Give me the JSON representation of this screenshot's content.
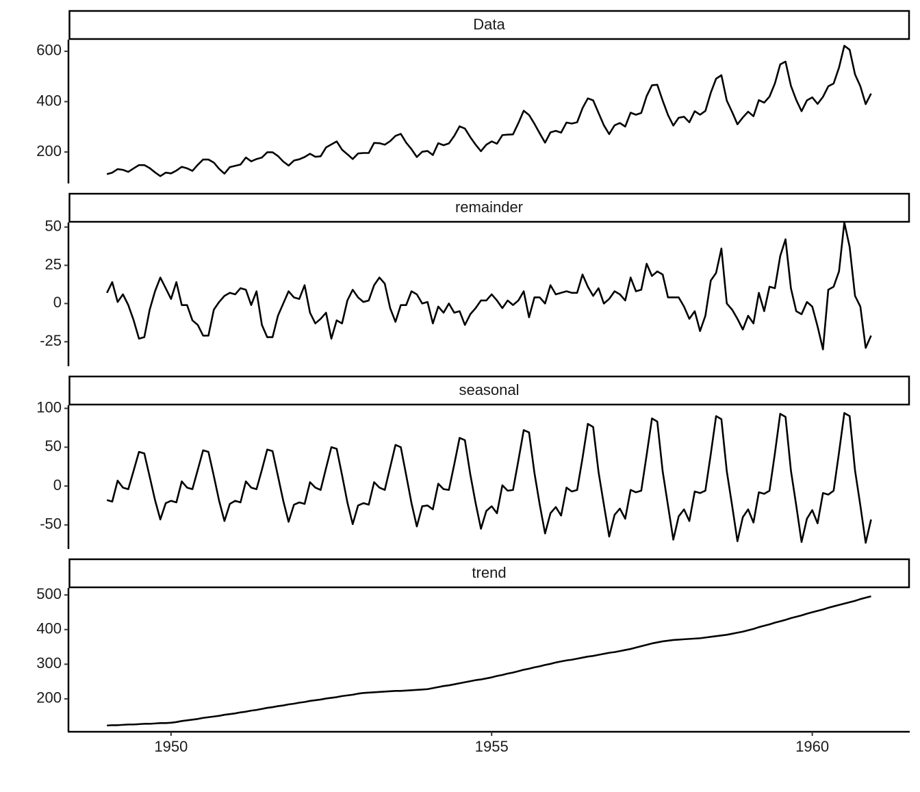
{
  "chart_data": {
    "type": "line",
    "color": "#000000",
    "x": [
      1949.0,
      1949.083,
      1949.167,
      1949.25,
      1949.333,
      1949.417,
      1949.5,
      1949.583,
      1949.667,
      1949.75,
      1949.833,
      1949.917,
      1950.0,
      1950.083,
      1950.167,
      1950.25,
      1950.333,
      1950.417,
      1950.5,
      1950.583,
      1950.667,
      1950.75,
      1950.833,
      1950.917,
      1951.0,
      1951.083,
      1951.167,
      1951.25,
      1951.333,
      1951.417,
      1951.5,
      1951.583,
      1951.667,
      1951.75,
      1951.833,
      1951.917,
      1952.0,
      1952.083,
      1952.167,
      1952.25,
      1952.333,
      1952.417,
      1952.5,
      1952.583,
      1952.667,
      1952.75,
      1952.833,
      1952.917,
      1953.0,
      1953.083,
      1953.167,
      1953.25,
      1953.333,
      1953.417,
      1953.5,
      1953.583,
      1953.667,
      1953.75,
      1953.833,
      1953.917,
      1954.0,
      1954.083,
      1954.167,
      1954.25,
      1954.333,
      1954.417,
      1954.5,
      1954.583,
      1954.667,
      1954.75,
      1954.833,
      1954.917,
      1955.0,
      1955.083,
      1955.167,
      1955.25,
      1955.333,
      1955.417,
      1955.5,
      1955.583,
      1955.667,
      1955.75,
      1955.833,
      1955.917,
      1956.0,
      1956.083,
      1956.167,
      1956.25,
      1956.333,
      1956.417,
      1956.5,
      1956.583,
      1956.667,
      1956.75,
      1956.833,
      1956.917,
      1957.0,
      1957.083,
      1957.167,
      1957.25,
      1957.333,
      1957.417,
      1957.5,
      1957.583,
      1957.667,
      1957.75,
      1957.833,
      1957.917,
      1958.0,
      1958.083,
      1958.167,
      1958.25,
      1958.333,
      1958.417,
      1958.5,
      1958.583,
      1958.667,
      1958.75,
      1958.833,
      1958.917,
      1959.0,
      1959.083,
      1959.167,
      1959.25,
      1959.333,
      1959.417,
      1959.5,
      1959.583,
      1959.667,
      1959.75,
      1959.833,
      1959.917,
      1960.0,
      1960.083,
      1960.167,
      1960.25,
      1960.333,
      1960.417,
      1960.5,
      1960.583,
      1960.667,
      1960.75,
      1960.833,
      1960.917
    ],
    "xlim": [
      1948.4,
      1961.52
    ],
    "xticks": [
      1950,
      1955,
      1960
    ],
    "panels": [
      {
        "title": "Data",
        "ylim": [
          75,
          646
        ],
        "yticks": [
          200,
          400,
          600
        ],
        "values": [
          112,
          118,
          132,
          129,
          121,
          135,
          148,
          148,
          136,
          119,
          104,
          118,
          115,
          126,
          141,
          135,
          125,
          149,
          170,
          170,
          158,
          133,
          114,
          140,
          145,
          150,
          178,
          163,
          172,
          178,
          199,
          199,
          184,
          162,
          146,
          166,
          171,
          180,
          193,
          181,
          183,
          218,
          230,
          242,
          209,
          191,
          172,
          194,
          196,
          196,
          236,
          235,
          229,
          243,
          264,
          272,
          237,
          211,
          180,
          201,
          204,
          188,
          235,
          227,
          234,
          264,
          302,
          293,
          259,
          229,
          203,
          229,
          242,
          233,
          267,
          269,
          270,
          315,
          364,
          347,
          312,
          274,
          237,
          278,
          284,
          277,
          317,
          313,
          318,
          374,
          413,
          405,
          355,
          306,
          271,
          306,
          315,
          301,
          356,
          348,
          355,
          422,
          465,
          467,
          404,
          347,
          305,
          336,
          340,
          318,
          362,
          348,
          363,
          435,
          491,
          505,
          404,
          359,
          310,
          337,
          360,
          342,
          406,
          396,
          420,
          472,
          548,
          559,
          463,
          407,
          362,
          405,
          417,
          391,
          419,
          461,
          472,
          535,
          622,
          606,
          508,
          461,
          390,
          432
        ]
      },
      {
        "title": "remainder",
        "ylim": [
          -41,
          53
        ],
        "yticks": [
          -25,
          0,
          25,
          50
        ],
        "values": [
          7,
          14,
          1,
          6,
          -1,
          -11,
          -23,
          -22,
          -4,
          8,
          17,
          10,
          3,
          14,
          -1,
          -1,
          -11,
          -14,
          -21,
          -21,
          -4,
          1,
          5,
          7,
          6,
          10,
          9,
          -1,
          8,
          -14,
          -22,
          -22,
          -8,
          0,
          8,
          4,
          3,
          12,
          -6,
          -13,
          -10,
          -6,
          -23,
          -11,
          -13,
          2,
          9,
          4,
          1,
          2,
          12,
          17,
          13,
          -3,
          -12,
          -1,
          -1,
          8,
          6,
          0,
          1,
          -13,
          -2,
          -6,
          0,
          -6,
          -5,
          -14,
          -7,
          -3,
          2,
          2,
          6,
          2,
          -3,
          2,
          -1,
          2,
          8,
          -9,
          4,
          4,
          0,
          12,
          6,
          7,
          8,
          7,
          7,
          19,
          11,
          5,
          10,
          0,
          3,
          8,
          6,
          2,
          17,
          8,
          9,
          26,
          18,
          21,
          19,
          4,
          4,
          4,
          -2,
          -10,
          -5,
          -18,
          -8,
          15,
          20,
          36,
          0,
          -4,
          -10,
          -17,
          -8,
          -13,
          7,
          -5,
          11,
          10,
          31,
          42,
          10,
          -5,
          -7,
          1,
          -2,
          -15,
          -30,
          9,
          11,
          21,
          53,
          37,
          5,
          -2,
          -29,
          -21
        ]
      },
      {
        "title": "seasonal",
        "ylim": [
          -81,
          104
        ],
        "yticks": [
          -50,
          0,
          50,
          100
        ],
        "values": [
          -18,
          -20,
          7,
          -2,
          -4,
          20,
          44,
          42,
          12,
          -18,
          -43,
          -22,
          -19,
          -21,
          6,
          -2,
          -4,
          21,
          46,
          44,
          13,
          -19,
          -45,
          -23,
          -19,
          -21,
          6,
          -2,
          -4,
          21,
          47,
          45,
          13,
          -19,
          -46,
          -24,
          -21,
          -23,
          5,
          -2,
          -5,
          23,
          50,
          48,
          14,
          -21,
          -49,
          -25,
          -22,
          -24,
          5,
          -2,
          -5,
          24,
          53,
          50,
          14,
          -22,
          -52,
          -26,
          -25,
          -30,
          3,
          -4,
          -5,
          28,
          62,
          59,
          15,
          -22,
          -55,
          -32,
          -26,
          -35,
          1,
          -6,
          -5,
          33,
          72,
          69,
          17,
          -24,
          -61,
          -35,
          -27,
          -38,
          -2,
          -7,
          -5,
          36,
          80,
          76,
          18,
          -24,
          -65,
          -37,
          -29,
          -42,
          -5,
          -8,
          -6,
          40,
          87,
          83,
          19,
          -25,
          -69,
          -39,
          -30,
          -45,
          -7,
          -9,
          -6,
          41,
          90,
          86,
          19,
          -25,
          -71,
          -40,
          -30,
          -47,
          -8,
          -10,
          -6,
          42,
          93,
          89,
          20,
          -25,
          -72,
          -42,
          -31,
          -48,
          -9,
          -11,
          -6,
          43,
          94,
          90,
          20,
          -25,
          -73,
          -43
        ]
      },
      {
        "title": "trend",
        "ylim": [
          105,
          520
        ],
        "yticks": [
          200,
          300,
          400,
          500
        ],
        "values": [
          123,
          124,
          124,
          125,
          126,
          126,
          127,
          128,
          128,
          129,
          130,
          130,
          131,
          133,
          136,
          138,
          140,
          142,
          145,
          147,
          149,
          151,
          154,
          156,
          158,
          161,
          163,
          166,
          168,
          171,
          174,
          176,
          179,
          181,
          184,
          186,
          189,
          191,
          194,
          196,
          198,
          201,
          203,
          205,
          208,
          210,
          212,
          215,
          217,
          218,
          219,
          220,
          221,
          222,
          223,
          223,
          224,
          225,
          226,
          227,
          228,
          231,
          234,
          237,
          239,
          242,
          245,
          248,
          251,
          254,
          256,
          259,
          262,
          266,
          269,
          273,
          276,
          280,
          284,
          287,
          291,
          294,
          298,
          301,
          305,
          308,
          311,
          313,
          316,
          319,
          322,
          324,
          327,
          330,
          333,
          335,
          338,
          341,
          344,
          348,
          352,
          356,
          360,
          363,
          366,
          368,
          370,
          371,
          372,
          373,
          374,
          375,
          377,
          379,
          381,
          383,
          385,
          388,
          391,
          394,
          398,
          402,
          407,
          411,
          415,
          420,
          424,
          428,
          433,
          437,
          441,
          446,
          450,
          454,
          458,
          463,
          467,
          471,
          475,
          479,
          483,
          488,
          492,
          496
        ]
      }
    ]
  }
}
